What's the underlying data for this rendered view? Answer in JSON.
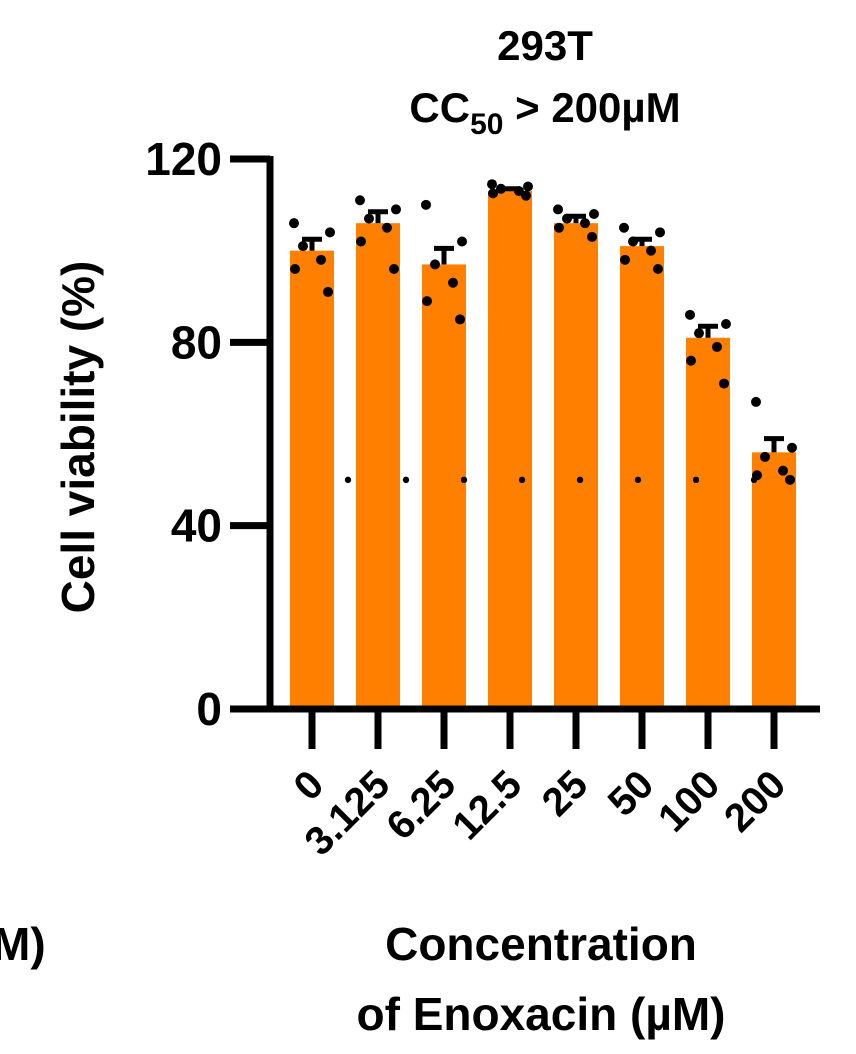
{
  "chart_data": {
    "type": "bar",
    "title_line1": "293T",
    "title_line2": {
      "prefix": "CC",
      "subscript": "50",
      "suffix": " > 200µM"
    },
    "ylabel": "Cell viability (%)",
    "xlabel_line1": "Concentration",
    "xlabel_line2": "of Enoxacin (µM)",
    "cropped_left_label": "M)",
    "categories": [
      "0",
      "3.125",
      "6.25",
      "12.5",
      "25",
      "50",
      "100",
      "200"
    ],
    "values": [
      100,
      106,
      97,
      113,
      106,
      101,
      81,
      56
    ],
    "sem": [
      2.5,
      2.5,
      3.5,
      0.5,
      1.5,
      1.5,
      2.5,
      3
    ],
    "points": [
      [
        106,
        104,
        101,
        98,
        96,
        91
      ],
      [
        111,
        109,
        107,
        105,
        102,
        96
      ],
      [
        110,
        102,
        97,
        93,
        89,
        85
      ],
      [
        114.5,
        114,
        113.5,
        113,
        112.5,
        112
      ],
      [
        109,
        108,
        107,
        106,
        105,
        103
      ],
      [
        105,
        104,
        102,
        100,
        98,
        96
      ],
      [
        86,
        84,
        82,
        79,
        76,
        71
      ],
      [
        67,
        57,
        55,
        52,
        51,
        50
      ]
    ],
    "threshold": 50,
    "ylim": [
      0,
      120
    ],
    "yticks": [
      0,
      40,
      80,
      120
    ],
    "bar_color": "#FF8000",
    "point_color": "#000000"
  }
}
